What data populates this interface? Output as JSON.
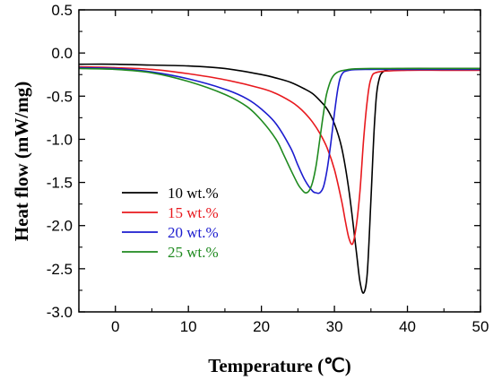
{
  "chart_data": {
    "type": "line",
    "title": "",
    "xlabel": "Temperature (℃)",
    "ylabel": "Heat flow (mW/mg)",
    "xlim": [
      -5,
      50
    ],
    "ylim": [
      -3.0,
      0.5
    ],
    "xticks": [
      0,
      10,
      20,
      30,
      40,
      50
    ],
    "xtick_labels": [
      "0",
      "10",
      "20",
      "30",
      "40",
      "50"
    ],
    "yticks": [
      0.5,
      0.0,
      -0.5,
      -1.0,
      -1.5,
      -2.0,
      -2.5,
      -3.0
    ],
    "ytick_labels": [
      "0.5",
      "0.0",
      "-0.5",
      "-1.0",
      "-1.5",
      "-2.0",
      "-2.5",
      "-3.0"
    ],
    "grid": false,
    "legend_position": "lower-left",
    "series": [
      {
        "name": "10 wt.%",
        "color": "#000000",
        "x": [
          -5,
          0,
          5,
          10,
          15,
          20,
          22,
          24,
          26,
          27,
          28,
          29,
          30,
          31,
          32,
          33,
          33.5,
          34,
          34.5,
          35,
          35.5,
          36,
          37,
          40,
          45,
          50
        ],
        "y": [
          -0.13,
          -0.13,
          -0.14,
          -0.15,
          -0.18,
          -0.25,
          -0.29,
          -0.34,
          -0.42,
          -0.47,
          -0.55,
          -0.65,
          -0.82,
          -1.1,
          -1.6,
          -2.3,
          -2.65,
          -2.78,
          -2.55,
          -1.7,
          -0.8,
          -0.35,
          -0.2,
          -0.18,
          -0.18,
          -0.18
        ]
      },
      {
        "name": "15 wt.%",
        "color": "#e8191e",
        "x": [
          -5,
          0,
          5,
          10,
          15,
          20,
          22,
          24,
          25,
          26,
          27,
          28,
          29,
          30,
          31,
          31.5,
          32,
          32.5,
          33,
          33.5,
          34,
          34.5,
          35,
          36,
          40,
          45,
          50
        ],
        "y": [
          -0.16,
          -0.17,
          -0.19,
          -0.24,
          -0.31,
          -0.41,
          -0.47,
          -0.56,
          -0.62,
          -0.7,
          -0.8,
          -0.93,
          -1.1,
          -1.35,
          -1.72,
          -1.95,
          -2.15,
          -2.21,
          -2.0,
          -1.6,
          -1.0,
          -0.55,
          -0.3,
          -0.22,
          -0.2,
          -0.2,
          -0.2
        ]
      },
      {
        "name": "20 wt.%",
        "color": "#1c1ccf",
        "x": [
          -5,
          0,
          5,
          10,
          15,
          18,
          20,
          22,
          24,
          25,
          26,
          27,
          27.5,
          28,
          28.5,
          29,
          29.5,
          30,
          30.5,
          31,
          32,
          35,
          40,
          45,
          50
        ],
        "y": [
          -0.17,
          -0.18,
          -0.22,
          -0.3,
          -0.42,
          -0.53,
          -0.65,
          -0.82,
          -1.1,
          -1.3,
          -1.48,
          -1.6,
          -1.62,
          -1.62,
          -1.55,
          -1.35,
          -1.05,
          -0.7,
          -0.4,
          -0.25,
          -0.2,
          -0.19,
          -0.19,
          -0.19,
          -0.19
        ]
      },
      {
        "name": "25 wt.%",
        "color": "#1f8a1f",
        "x": [
          -5,
          0,
          5,
          10,
          15,
          18,
          20,
          22,
          23,
          24,
          25,
          25.5,
          26,
          26.5,
          27,
          27.5,
          28,
          28.5,
          29,
          30,
          32,
          35,
          40,
          45,
          50
        ],
        "y": [
          -0.18,
          -0.19,
          -0.23,
          -0.33,
          -0.48,
          -0.62,
          -0.78,
          -1.0,
          -1.17,
          -1.35,
          -1.52,
          -1.58,
          -1.62,
          -1.6,
          -1.5,
          -1.3,
          -1.0,
          -0.7,
          -0.45,
          -0.25,
          -0.19,
          -0.18,
          -0.18,
          -0.18,
          -0.18
        ]
      }
    ]
  }
}
